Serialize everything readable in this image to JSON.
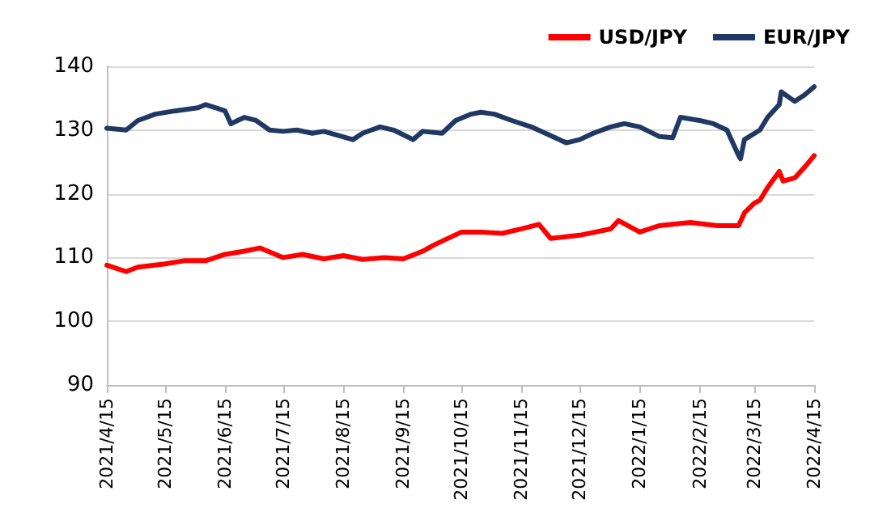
{
  "chart_data": {
    "type": "line",
    "xlim": [
      "2021-04-15",
      "2022-04-15"
    ],
    "xticks": [
      {
        "value": "2021-04-15",
        "label": "2021/4/15"
      },
      {
        "value": "2021-05-15",
        "label": "2021/5/15"
      },
      {
        "value": "2021-06-15",
        "label": "2021/6/15"
      },
      {
        "value": "2021-07-15",
        "label": "2021/7/15"
      },
      {
        "value": "2021-08-15",
        "label": "2021/8/15"
      },
      {
        "value": "2021-09-15",
        "label": "2021/9/15"
      },
      {
        "value": "2021-10-15",
        "label": "2021/10/15"
      },
      {
        "value": "2021-11-15",
        "label": "2021/11/15"
      },
      {
        "value": "2021-12-15",
        "label": "2021/12/15"
      },
      {
        "value": "2022-01-15",
        "label": "2022/1/15"
      },
      {
        "value": "2022-02-15",
        "label": "2022/2/15"
      },
      {
        "value": "2022-03-15",
        "label": "2022/3/15"
      },
      {
        "value": "2022-04-15",
        "label": "2022/4/15"
      }
    ],
    "ylim": [
      90,
      140
    ],
    "yticks": [
      90,
      100,
      110,
      120,
      130,
      140
    ],
    "grid": "y",
    "legend": "top right",
    "marker": "none",
    "line_style": "solid",
    "series": [
      {
        "name": "USD/JPY",
        "color": "#ff0000",
        "x": [
          "2021-04-15",
          "2021-04-25",
          "2021-05-01",
          "2021-05-15",
          "2021-05-25",
          "2021-06-05",
          "2021-06-15",
          "2021-06-25",
          "2021-07-03",
          "2021-07-15",
          "2021-07-25",
          "2021-08-05",
          "2021-08-15",
          "2021-08-25",
          "2021-09-05",
          "2021-09-15",
          "2021-09-25",
          "2021-10-01",
          "2021-10-15",
          "2021-10-25",
          "2021-11-05",
          "2021-11-15",
          "2021-11-24",
          "2021-11-30",
          "2021-12-15",
          "2021-12-31",
          "2022-01-04",
          "2022-01-15",
          "2022-01-25",
          "2022-02-10",
          "2022-02-24",
          "2022-03-07",
          "2022-03-10",
          "2022-03-15",
          "2022-03-18",
          "2022-03-22",
          "2022-03-28",
          "2022-03-30",
          "2022-04-05",
          "2022-04-11",
          "2022-04-15"
        ],
        "values": [
          108.8,
          107.8,
          108.5,
          109,
          109.5,
          109.5,
          110.5,
          111,
          111.5,
          110,
          110.5,
          109.8,
          110.3,
          109.7,
          110,
          109.8,
          111,
          112,
          114,
          114,
          113.8,
          114.5,
          115.2,
          113,
          113.5,
          114.5,
          115.8,
          114,
          115,
          115.5,
          115,
          115,
          117,
          118.5,
          119,
          121,
          123.5,
          122,
          122.5,
          124.5,
          126
        ]
      },
      {
        "name": "EUR/JPY",
        "color": "#1f3864",
        "x": [
          "2021-04-15",
          "2021-04-25",
          "2021-05-01",
          "2021-05-10",
          "2021-05-20",
          "2021-06-01",
          "2021-06-05",
          "2021-06-10",
          "2021-06-15",
          "2021-06-18",
          "2021-06-25",
          "2021-07-01",
          "2021-07-08",
          "2021-07-15",
          "2021-07-22",
          "2021-07-30",
          "2021-08-05",
          "2021-08-20",
          "2021-08-25",
          "2021-09-03",
          "2021-09-10",
          "2021-09-20",
          "2021-09-25",
          "2021-10-05",
          "2021-10-12",
          "2021-10-20",
          "2021-10-25",
          "2021-11-01",
          "2021-11-10",
          "2021-11-20",
          "2021-12-01",
          "2021-12-08",
          "2021-12-15",
          "2021-12-22",
          "2021-12-31",
          "2022-01-07",
          "2022-01-15",
          "2022-01-25",
          "2022-02-01",
          "2022-02-05",
          "2022-02-15",
          "2022-02-22",
          "2022-03-01",
          "2022-03-07",
          "2022-03-08",
          "2022-03-10",
          "2022-03-18",
          "2022-03-22",
          "2022-03-28",
          "2022-03-29",
          "2022-04-05",
          "2022-04-10",
          "2022-04-15"
        ],
        "values": [
          130.3,
          130,
          131.5,
          132.5,
          133,
          133.5,
          134,
          133.5,
          133,
          131,
          132,
          131.5,
          130,
          129.8,
          130,
          129.5,
          129.8,
          128.5,
          129.5,
          130.5,
          130,
          128.5,
          129.8,
          129.5,
          131.5,
          132.5,
          132.8,
          132.5,
          131.5,
          130.5,
          129,
          128,
          128.5,
          129.5,
          130.5,
          131,
          130.5,
          129,
          128.8,
          132,
          131.5,
          131,
          130,
          126,
          125.5,
          128.5,
          130,
          132,
          134,
          136,
          134.5,
          135.5,
          136.8
        ]
      }
    ]
  }
}
